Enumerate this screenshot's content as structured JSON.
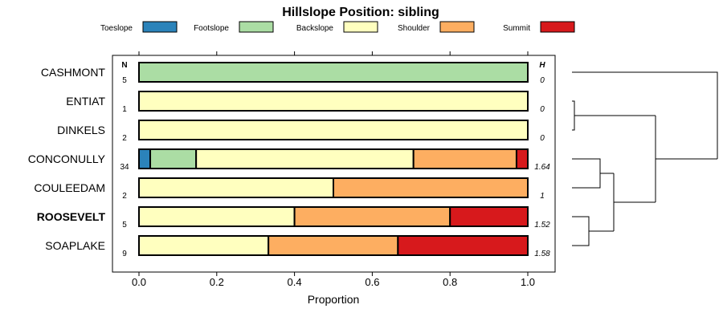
{
  "chart_data": {
    "type": "bar",
    "stacked": true,
    "orientation": "horizontal",
    "title": "Hillslope Position: sibling",
    "xlabel": "Proportion",
    "xlim": [
      0,
      1
    ],
    "xticks": [
      "0.0",
      "0.2",
      "0.4",
      "0.6",
      "0.8",
      "1.0"
    ],
    "xtick_values": [
      0,
      0.2,
      0.4,
      0.6,
      0.8,
      1.0
    ],
    "n_header": "N",
    "h_header": "H",
    "legend": {
      "placement": "top",
      "entries": [
        {
          "name": "Toeslope",
          "color": "#2B83BA"
        },
        {
          "name": "Footslope",
          "color": "#ABDDA4"
        },
        {
          "name": "Backslope",
          "color": "#FFFFBF"
        },
        {
          "name": "Shoulder",
          "color": "#FDAE61"
        },
        {
          "name": "Summit",
          "color": "#D7191C"
        }
      ]
    },
    "categories": [
      "CASHMONT",
      "ENTIAT",
      "DINKELS",
      "CONCONULLY",
      "COULEEDAM",
      "ROOSEVELT",
      "SOAPLAKE"
    ],
    "bold_category": "ROOSEVELT",
    "n": [
      "5",
      "1",
      "2",
      "34",
      "2",
      "5",
      "9"
    ],
    "h": [
      "0",
      "0",
      "0",
      "1.64",
      "1",
      "1.52",
      "1.58"
    ],
    "series": [
      {
        "name": "Toeslope",
        "values": [
          0,
          0,
          0,
          0.029,
          0,
          0,
          0
        ]
      },
      {
        "name": "Footslope",
        "values": [
          1,
          0,
          0,
          0.118,
          0,
          0,
          0
        ]
      },
      {
        "name": "Backslope",
        "values": [
          0,
          1,
          1,
          0.559,
          0.5,
          0.4,
          0.333
        ]
      },
      {
        "name": "Shoulder",
        "values": [
          0,
          0,
          0,
          0.265,
          0.5,
          0.4,
          0.333
        ]
      },
      {
        "name": "Summit",
        "values": [
          0,
          0,
          0,
          0.029,
          0,
          0.2,
          0.334
        ]
      }
    ]
  }
}
